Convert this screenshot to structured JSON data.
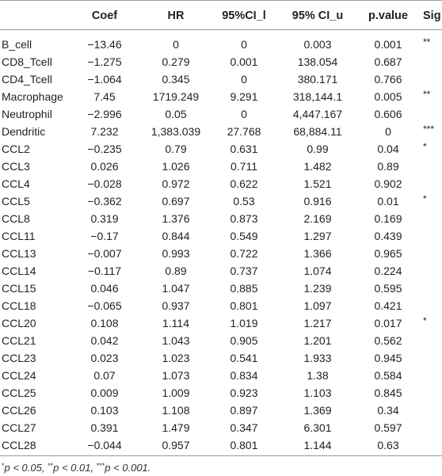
{
  "table": {
    "headers": {
      "coef": "Coef",
      "hr": "HR",
      "ci_lower": "95%CI_l",
      "ci_upper": "95% CI_u",
      "pvalue": "p.value",
      "sig": "Sig"
    },
    "rows": [
      {
        "name": "B_cell",
        "coef": "−13.46",
        "hr": "0",
        "ci_lower": "0",
        "ci_upper": "0.003",
        "pvalue": "0.001",
        "sig": "**"
      },
      {
        "name": "CD8_Tcell",
        "coef": "−1.275",
        "hr": "0.279",
        "ci_lower": "0.001",
        "ci_upper": "138.054",
        "pvalue": "0.687",
        "sig": ""
      },
      {
        "name": "CD4_Tcell",
        "coef": "−1.064",
        "hr": "0.345",
        "ci_lower": "0",
        "ci_upper": "380.171",
        "pvalue": "0.766",
        "sig": ""
      },
      {
        "name": "Macrophage",
        "coef": "7.45",
        "hr": "1719.249",
        "ci_lower": "9.291",
        "ci_upper": "318,144.1",
        "pvalue": "0.005",
        "sig": "**"
      },
      {
        "name": "Neutrophil",
        "coef": "−2.996",
        "hr": "0.05",
        "ci_lower": "0",
        "ci_upper": "4,447.167",
        "pvalue": "0.606",
        "sig": ""
      },
      {
        "name": "Dendritic",
        "coef": "7.232",
        "hr": "1,383.039",
        "ci_lower": "27.768",
        "ci_upper": "68,884.11",
        "pvalue": "0",
        "sig": "***"
      },
      {
        "name": "CCL2",
        "coef": "−0.235",
        "hr": "0.79",
        "ci_lower": "0.631",
        "ci_upper": "0.99",
        "pvalue": "0.04",
        "sig": "*"
      },
      {
        "name": "CCL3",
        "coef": "0.026",
        "hr": "1.026",
        "ci_lower": "0.711",
        "ci_upper": "1.482",
        "pvalue": "0.89",
        "sig": ""
      },
      {
        "name": "CCL4",
        "coef": "−0.028",
        "hr": "0.972",
        "ci_lower": "0.622",
        "ci_upper": "1.521",
        "pvalue": "0.902",
        "sig": ""
      },
      {
        "name": "CCL5",
        "coef": "−0.362",
        "hr": "0.697",
        "ci_lower": "0.53",
        "ci_upper": "0.916",
        "pvalue": "0.01",
        "sig": "*"
      },
      {
        "name": "CCL8",
        "coef": "0.319",
        "hr": "1.376",
        "ci_lower": "0.873",
        "ci_upper": "2.169",
        "pvalue": "0.169",
        "sig": ""
      },
      {
        "name": "CCL11",
        "coef": "−0.17",
        "hr": "0.844",
        "ci_lower": "0.549",
        "ci_upper": "1.297",
        "pvalue": "0.439",
        "sig": ""
      },
      {
        "name": "CCL13",
        "coef": "−0.007",
        "hr": "0.993",
        "ci_lower": "0.722",
        "ci_upper": "1.366",
        "pvalue": "0.965",
        "sig": ""
      },
      {
        "name": "CCL14",
        "coef": "−0.117",
        "hr": "0.89",
        "ci_lower": "0.737",
        "ci_upper": "1.074",
        "pvalue": "0.224",
        "sig": ""
      },
      {
        "name": "CCL15",
        "coef": "0.046",
        "hr": "1.047",
        "ci_lower": "0.885",
        "ci_upper": "1.239",
        "pvalue": "0.595",
        "sig": ""
      },
      {
        "name": "CCL18",
        "coef": "−0.065",
        "hr": "0.937",
        "ci_lower": "0.801",
        "ci_upper": "1.097",
        "pvalue": "0.421",
        "sig": ""
      },
      {
        "name": "CCL20",
        "coef": "0.108",
        "hr": "1.114",
        "ci_lower": "1.019",
        "ci_upper": "1.217",
        "pvalue": "0.017",
        "sig": "*"
      },
      {
        "name": "CCL21",
        "coef": "0.042",
        "hr": "1.043",
        "ci_lower": "0.905",
        "ci_upper": "1.201",
        "pvalue": "0.562",
        "sig": ""
      },
      {
        "name": "CCL23",
        "coef": "0.023",
        "hr": "1.023",
        "ci_lower": "0.541",
        "ci_upper": "1.933",
        "pvalue": "0.945",
        "sig": ""
      },
      {
        "name": "CCL24",
        "coef": "0.07",
        "hr": "1.073",
        "ci_lower": "0.834",
        "ci_upper": "1.38",
        "pvalue": "0.584",
        "sig": ""
      },
      {
        "name": "CCL25",
        "coef": "0.009",
        "hr": "1.009",
        "ci_lower": "0.923",
        "ci_upper": "1.103",
        "pvalue": "0.845",
        "sig": ""
      },
      {
        "name": "CCL26",
        "coef": "0.103",
        "hr": "1.108",
        "ci_lower": "0.897",
        "ci_upper": "1.369",
        "pvalue": "0.34",
        "sig": ""
      },
      {
        "name": "CCL27",
        "coef": "0.391",
        "hr": "1.479",
        "ci_lower": "0.347",
        "ci_upper": "6.301",
        "pvalue": "0.597",
        "sig": ""
      },
      {
        "name": "CCL28",
        "coef": "−0.044",
        "hr": "0.957",
        "ci_lower": "0.801",
        "ci_upper": "1.144",
        "pvalue": "0.63",
        "sig": ""
      }
    ]
  },
  "footnote": {
    "m1": "*",
    "t1": "p < 0.05, ",
    "m2": "**",
    "t2": "p < 0.01, ",
    "m3": "***",
    "t3": "p < 0.001."
  }
}
